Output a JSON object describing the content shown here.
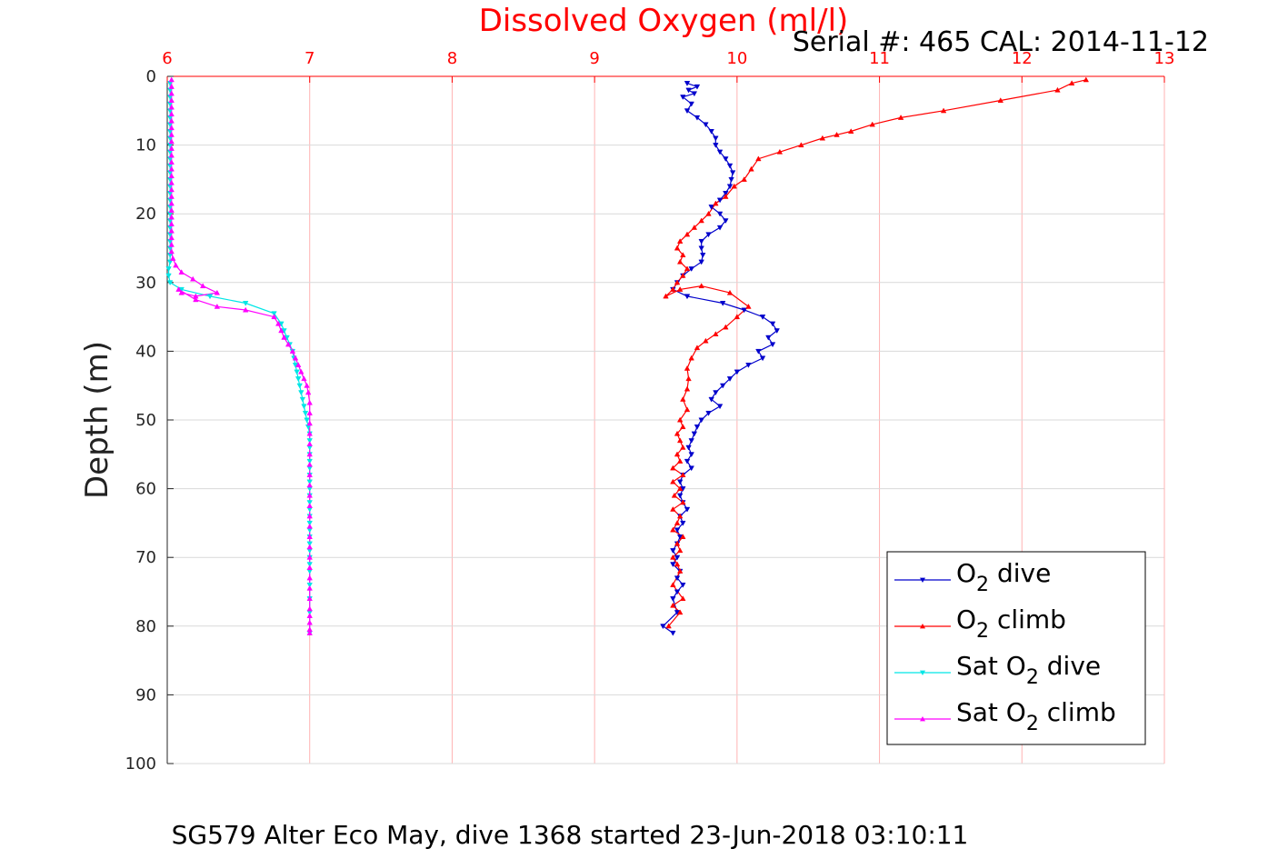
{
  "chart_data": {
    "type": "line",
    "title": "Dissolved Oxygen (ml/l)",
    "subtitle": "Serial #: 465  CAL: 2014-11-12",
    "xlabel": "Dissolved Oxygen (ml/l)",
    "ylabel": "Depth (m)",
    "caption": "SG579 Alter Eco May, dive 1368 started 23-Jun-2018 03:10:11",
    "x_axis_position": "top",
    "y_axis_reversed": true,
    "xlim": [
      6,
      13
    ],
    "ylim": [
      0,
      100
    ],
    "xticks": [
      6,
      7,
      8,
      9,
      10,
      11,
      12,
      13
    ],
    "yticks": [
      0,
      10,
      20,
      30,
      40,
      50,
      60,
      70,
      80,
      90,
      100
    ],
    "grid": true,
    "legend_position": "bottom-right",
    "colors": {
      "title": "#ff0000",
      "x_tick_labels": "#ff0000",
      "x_axis_line": "#ff0000",
      "x_grid": "#ffb3b3",
      "y_grid": "#d9d9d9"
    },
    "series": [
      {
        "name": "O2 dive",
        "legend_main": "O",
        "legend_sub": "2",
        "legend_suffix": " dive",
        "color": "#0000cc",
        "marker": "triangle-down",
        "x": [
          9.65,
          9.72,
          9.66,
          9.7,
          9.62,
          9.68,
          9.65,
          9.72,
          9.78,
          9.82,
          9.85,
          9.85,
          9.88,
          9.92,
          9.95,
          9.97,
          9.96,
          9.95,
          9.92,
          9.88,
          9.82,
          9.88,
          9.92,
          9.88,
          9.8,
          9.75,
          9.75,
          9.76,
          9.75,
          9.68,
          9.62,
          9.58,
          9.55,
          9.65,
          9.9,
          10.05,
          10.18,
          10.25,
          10.28,
          10.22,
          10.25,
          10.15,
          10.18,
          10.08,
          10.0,
          9.95,
          9.9,
          9.85,
          9.82,
          9.88,
          9.8,
          9.75,
          9.72,
          9.7,
          9.68,
          9.66,
          9.68,
          9.65,
          9.68,
          9.62,
          9.6,
          9.62,
          9.6,
          9.62,
          9.65,
          9.6,
          9.62,
          9.58,
          9.6,
          9.58,
          9.55,
          9.58,
          9.55,
          9.6,
          9.58,
          9.62,
          9.58,
          9.55,
          9.58,
          9.48,
          9.55
        ],
        "y": [
          1.0,
          1.5,
          2.0,
          2.5,
          3.0,
          4.0,
          5.0,
          6.0,
          7.0,
          8.0,
          9.0,
          10.0,
          11.0,
          12.0,
          13.0,
          14.0,
          15.0,
          16.0,
          17.0,
          18.0,
          19.0,
          20.0,
          21.0,
          22.0,
          23.0,
          24.0,
          25.0,
          26.0,
          27.0,
          28.0,
          29.0,
          30.0,
          31.0,
          32.0,
          33.0,
          34.0,
          35.0,
          36.0,
          37.0,
          38.0,
          39.0,
          40.0,
          41.0,
          42.0,
          43.0,
          44.0,
          45.0,
          46.0,
          47.0,
          48.0,
          49.0,
          50.0,
          51.0,
          52.0,
          53.0,
          54.0,
          55.0,
          56.0,
          57.0,
          58.0,
          59.0,
          60.0,
          61.0,
          62.0,
          63.0,
          64.0,
          65.0,
          66.0,
          67.0,
          68.0,
          69.0,
          70.0,
          71.0,
          72.0,
          73.0,
          74.0,
          75.0,
          76.0,
          78.0,
          80.0,
          81.0
        ]
      },
      {
        "name": "O2 climb",
        "legend_main": "O",
        "legend_sub": "2",
        "legend_suffix": " climb",
        "color": "#ff0000",
        "marker": "triangle-up",
        "x": [
          12.45,
          12.35,
          12.25,
          11.85,
          11.45,
          11.15,
          10.95,
          10.8,
          10.7,
          10.6,
          10.45,
          10.3,
          10.15,
          10.1,
          10.05,
          9.98,
          9.92,
          9.85,
          9.8,
          9.75,
          9.7,
          9.65,
          9.6,
          9.58,
          9.62,
          9.6,
          9.65,
          9.62,
          9.58,
          9.55,
          9.5,
          9.6,
          9.75,
          9.95,
          10.08,
          10.0,
          9.92,
          9.85,
          9.78,
          9.72,
          9.68,
          9.65,
          9.66,
          9.65,
          9.62,
          9.65,
          9.6,
          9.62,
          9.58,
          9.6,
          9.62,
          9.58,
          9.6,
          9.55,
          9.62,
          9.55,
          9.6,
          9.56,
          9.62,
          9.55,
          9.6,
          9.58,
          9.55,
          9.62,
          9.58,
          9.6,
          9.55,
          9.58,
          9.6,
          9.55,
          9.62,
          9.55,
          9.6,
          9.52
        ],
        "y": [
          0.5,
          1.0,
          2.0,
          3.5,
          5.0,
          6.0,
          7.0,
          8.0,
          8.5,
          9.0,
          10.0,
          11.0,
          12.0,
          13.5,
          15.0,
          16.0,
          17.5,
          18.5,
          20.0,
          21.0,
          22.0,
          23.0,
          24.0,
          25.0,
          26.0,
          27.0,
          28.0,
          29.0,
          30.0,
          31.0,
          32.0,
          31.0,
          30.5,
          31.5,
          33.5,
          35.0,
          36.5,
          37.5,
          38.5,
          39.5,
          41.0,
          42.5,
          44.0,
          45.5,
          47.0,
          48.5,
          50.0,
          51.0,
          52.0,
          53.0,
          54.0,
          55.0,
          56.0,
          57.0,
          58.0,
          59.0,
          60.0,
          61.0,
          62.0,
          63.0,
          64.0,
          65.0,
          66.0,
          67.0,
          68.0,
          69.0,
          70.0,
          71.0,
          72.0,
          74.0,
          76.0,
          77.0,
          78.0,
          80.0
        ]
      },
      {
        "name": "Sat O2 dive",
        "legend_main": "Sat O",
        "legend_sub": "2",
        "legend_suffix": " dive",
        "color": "#00e6e6",
        "marker": "triangle-down",
        "x": [
          6.02,
          6.02,
          6.02,
          6.02,
          6.02,
          6.02,
          6.02,
          6.02,
          6.02,
          6.02,
          6.02,
          6.02,
          6.02,
          6.02,
          6.02,
          6.02,
          6.02,
          6.02,
          6.02,
          6.02,
          6.02,
          6.02,
          6.02,
          6.02,
          6.02,
          6.02,
          6.02,
          6.01,
          6.01,
          6.02,
          6.1,
          6.3,
          6.55,
          6.75,
          6.8,
          6.82,
          6.84,
          6.86,
          6.88,
          6.89,
          6.9,
          6.91,
          6.92,
          6.93,
          6.94,
          6.95,
          6.96,
          6.97,
          6.98,
          6.99,
          7.0,
          7.0,
          7.0,
          7.0,
          7.0,
          7.0,
          7.0,
          7.0,
          7.0,
          7.0,
          7.0,
          7.0,
          7.0,
          7.0,
          7.0,
          7.0,
          7.0,
          7.0,
          7.0,
          7.0,
          7.0,
          7.0,
          7.0,
          7.0,
          7.0
        ],
        "y": [
          1.0,
          2.0,
          3.0,
          4.0,
          5.0,
          6.0,
          7.0,
          8.0,
          9.0,
          10.0,
          11.0,
          12.0,
          13.0,
          14.0,
          15.0,
          16.0,
          17.0,
          18.0,
          19.0,
          20.0,
          21.0,
          22.0,
          23.0,
          24.0,
          25.0,
          26.0,
          27.0,
          28.0,
          29.0,
          30.0,
          31.0,
          32.0,
          33.0,
          34.5,
          36.0,
          37.0,
          38.0,
          39.0,
          40.0,
          41.0,
          42.0,
          43.0,
          44.0,
          45.0,
          46.0,
          47.0,
          48.0,
          49.0,
          50.0,
          51.0,
          52.0,
          53.0,
          54.0,
          55.0,
          56.0,
          57.0,
          58.0,
          59.0,
          60.0,
          61.0,
          62.0,
          63.0,
          64.0,
          65.0,
          66.0,
          67.0,
          68.0,
          69.0,
          70.0,
          71.0,
          72.0,
          74.0,
          76.0,
          78.0,
          81.0
        ]
      },
      {
        "name": "Sat O2 climb",
        "legend_main": "Sat O",
        "legend_sub": "2",
        "legend_suffix": " climb",
        "color": "#ff00ff",
        "marker": "triangle-up",
        "x": [
          6.03,
          6.03,
          6.03,
          6.03,
          6.03,
          6.03,
          6.03,
          6.03,
          6.03,
          6.03,
          6.03,
          6.03,
          6.03,
          6.03,
          6.03,
          6.03,
          6.03,
          6.03,
          6.03,
          6.03,
          6.03,
          6.03,
          6.03,
          6.03,
          6.03,
          6.03,
          6.04,
          6.06,
          6.1,
          6.18,
          6.25,
          6.35,
          6.2,
          6.1,
          6.08,
          6.2,
          6.35,
          6.55,
          6.75,
          6.78,
          6.8,
          6.82,
          6.85,
          6.88,
          6.9,
          6.92,
          6.94,
          6.96,
          6.98,
          6.99,
          7.0,
          7.0,
          7.0,
          7.0,
          7.0,
          7.0,
          7.0,
          7.0,
          7.0,
          7.0,
          7.0,
          7.0,
          7.0,
          7.0,
          7.0,
          7.0,
          7.0,
          7.0,
          7.0,
          7.0,
          7.0,
          7.0,
          7.0,
          7.0,
          7.0
        ],
        "y": [
          0.5,
          1.5,
          2.5,
          3.5,
          4.5,
          5.5,
          6.5,
          7.5,
          8.5,
          9.5,
          10.5,
          11.5,
          12.5,
          13.5,
          14.5,
          15.5,
          16.5,
          17.5,
          18.5,
          19.5,
          20.5,
          21.5,
          22.5,
          23.5,
          24.5,
          25.5,
          26.5,
          27.5,
          28.5,
          29.5,
          30.5,
          31.5,
          32.0,
          31.5,
          31.0,
          32.5,
          33.5,
          34.0,
          35.0,
          36.0,
          37.0,
          38.0,
          39.0,
          40.0,
          41.0,
          42.0,
          43.0,
          44.0,
          45.0,
          46.0,
          47.5,
          49.0,
          50.5,
          52.0,
          53.5,
          55.0,
          56.5,
          58.0,
          59.5,
          61.0,
          62.5,
          64.0,
          65.5,
          67.0,
          68.5,
          70.0,
          71.5,
          73.0,
          74.5,
          76.0,
          77.5,
          78.5,
          79.5,
          80.5,
          81.0
        ]
      }
    ]
  }
}
